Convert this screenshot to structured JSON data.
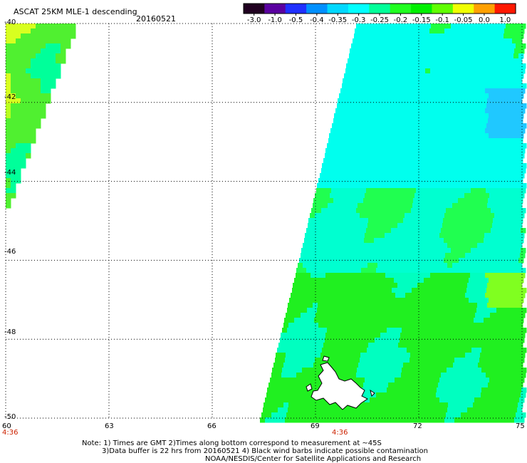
{
  "header": {
    "product": "ASCAT 25KM MLE-1 descending",
    "date": "20160521"
  },
  "colorbar": {
    "labels": [
      "-3.0",
      "-1.0",
      "-0.5",
      "-0.4",
      "-0.35",
      "-0.3",
      "-0.25",
      "-0.2",
      "-0.15",
      "-0.1",
      "-0.05",
      "0.0",
      "1.0"
    ],
    "colors": [
      "#200020",
      "#5a00a0",
      "#2030ff",
      "#0090ff",
      "#00d8ff",
      "#00ffff",
      "#00ff9a",
      "#20ff20",
      "#00f000",
      "#60ff00",
      "#f0ff00",
      "#ffa000",
      "#ff1800"
    ]
  },
  "map": {
    "lat_labels": [
      "-40",
      "-42",
      "-44",
      "-46",
      "-48",
      "-50"
    ],
    "lon_labels": [
      "60",
      "63",
      "66",
      "69",
      "72",
      "75"
    ],
    "time_labels": [
      "4:36",
      "4:36"
    ],
    "lat_range": [
      -50,
      -40
    ],
    "lon_range": [
      60,
      75
    ],
    "grid": true
  },
  "notes": {
    "line1": "Note: 1) Times are GMT 2)Times along bottom correspond to measurement at ~45S",
    "line2": "3)Data buffer is 22 hrs from 20160521 4) Black wind barbs indicate possible contamination",
    "line3": "NOAA/NESDIS/Center for Satellite Applications and Research"
  }
}
